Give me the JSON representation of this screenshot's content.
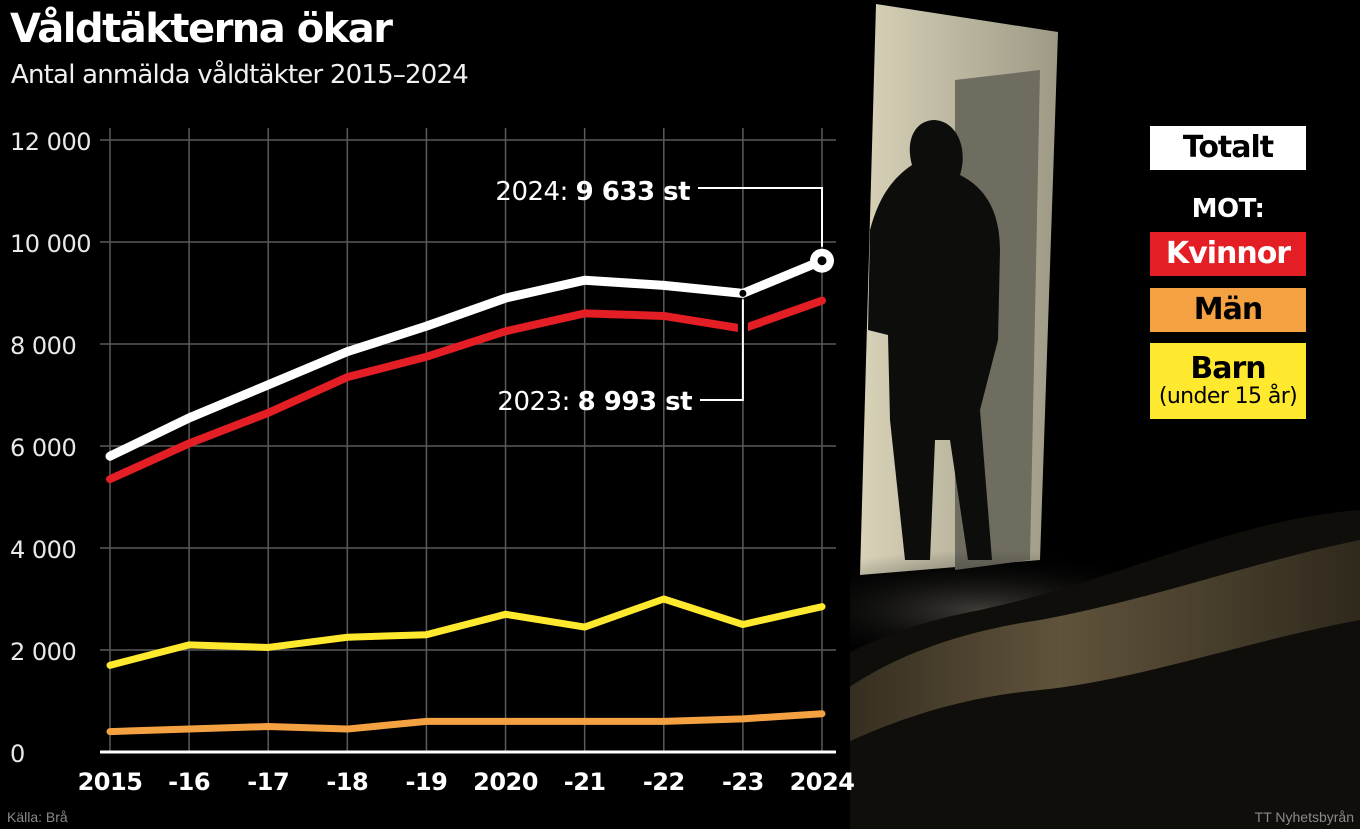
{
  "title": "Våldtäkterna ökar",
  "subtitle": "Antal anmälda våldtäkter 2015–2024",
  "legend": {
    "total": "Totalt",
    "mot": "MOT:",
    "women": "Kvinnor",
    "men": "Män",
    "children": "Barn",
    "children_sub": "(under 15 år)"
  },
  "colors": {
    "total": "#ffffff",
    "women": "#e31e24",
    "men": "#f4a142",
    "children": "#ffe92e",
    "grid": "#5a5a5a",
    "background": "#000000"
  },
  "annotations": [
    {
      "label": "2024:",
      "value": "9 633 st"
    },
    {
      "label": "2023:",
      "value": "8 993 st"
    }
  ],
  "footer": {
    "source": "Källa: Brå",
    "credit": "TT Nyhetsbyrån"
  },
  "chart_data": {
    "type": "line",
    "x": [
      2015,
      2016,
      2017,
      2018,
      2019,
      2020,
      2021,
      2022,
      2023,
      2024
    ],
    "tick_labels": [
      "2015",
      "-16",
      "-17",
      "-18",
      "-19",
      "2020",
      "-21",
      "-22",
      "-23",
      "2024"
    ],
    "y_ticks": [
      0,
      2000,
      4000,
      6000,
      8000,
      10000,
      12000
    ],
    "y_tick_labels": [
      "0",
      "2 000",
      "4 000",
      "6 000",
      "8 000",
      "10 000",
      "12 000"
    ],
    "ylim": [
      0,
      12000
    ],
    "grid": true,
    "legend_position": "right",
    "series": [
      {
        "name": "Totalt",
        "values": [
          5800,
          6550,
          7200,
          7850,
          8350,
          8900,
          9250,
          9150,
          8993,
          9633
        ]
      },
      {
        "name": "Kvinnor",
        "values": [
          5350,
          6050,
          6650,
          7350,
          7750,
          8250,
          8600,
          8550,
          8300,
          8850
        ]
      },
      {
        "name": "Barn",
        "values": [
          1700,
          2100,
          2050,
          2250,
          2300,
          2700,
          2450,
          3000,
          2500,
          2850
        ]
      },
      {
        "name": "Män",
        "values": [
          400,
          450,
          500,
          450,
          600,
          600,
          600,
          600,
          650,
          750
        ]
      }
    ]
  }
}
